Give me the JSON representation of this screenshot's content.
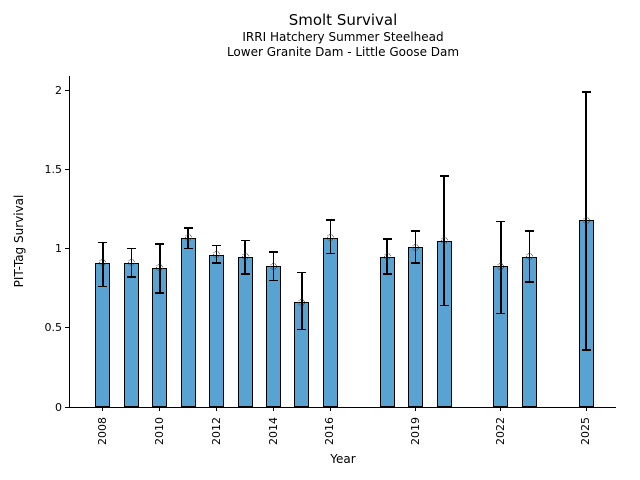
{
  "chart_data": {
    "type": "bar",
    "title": "Smolt Survival",
    "subtitles": [
      "IRRI Hatchery Summer Steelhead",
      "Lower Granite Dam - Little Goose Dam"
    ],
    "xlabel": "Year",
    "ylabel": "PIT-Tag Survival",
    "xlim": [
      2006.84,
      2026.05
    ],
    "ylim": [
      0,
      2.09
    ],
    "xticks": [
      2008,
      2010,
      2012,
      2014,
      2016,
      2019,
      2022,
      2025
    ],
    "yticks": [
      0,
      0.5,
      1,
      1.5,
      2
    ],
    "ytick_labels": [
      "0",
      "0.5",
      "1",
      "1.5",
      "2"
    ],
    "grid": false,
    "legend_position": "none",
    "bar_color": "#58a3d2",
    "bar_edge_color": "#000000",
    "error_color": "#000000",
    "points": [
      {
        "year": 2008,
        "value": 0.91,
        "err_low": 0.76,
        "err_high": 1.04
      },
      {
        "year": 2009,
        "value": 0.91,
        "err_low": 0.82,
        "err_high": 1.0
      },
      {
        "year": 2010,
        "value": 0.88,
        "err_low": 0.72,
        "err_high": 1.03
      },
      {
        "year": 2011,
        "value": 1.07,
        "err_low": 1.0,
        "err_high": 1.13
      },
      {
        "year": 2012,
        "value": 0.96,
        "err_low": 0.91,
        "err_high": 1.02
      },
      {
        "year": 2013,
        "value": 0.95,
        "err_low": 0.84,
        "err_high": 1.05
      },
      {
        "year": 2014,
        "value": 0.89,
        "err_low": 0.8,
        "err_high": 0.98
      },
      {
        "year": 2015,
        "value": 0.66,
        "err_low": 0.49,
        "err_high": 0.85
      },
      {
        "year": 2016,
        "value": 1.07,
        "err_low": 0.97,
        "err_high": 1.18
      },
      {
        "year": 2018,
        "value": 0.95,
        "err_low": 0.84,
        "err_high": 1.06
      },
      {
        "year": 2019,
        "value": 1.01,
        "err_low": 0.91,
        "err_high": 1.11
      },
      {
        "year": 2020,
        "value": 1.05,
        "err_low": 0.64,
        "err_high": 1.46
      },
      {
        "year": 2022,
        "value": 0.89,
        "err_low": 0.59,
        "err_high": 1.17
      },
      {
        "year": 2023,
        "value": 0.95,
        "err_low": 0.79,
        "err_high": 1.11
      },
      {
        "year": 2025,
        "value": 1.18,
        "err_low": 0.36,
        "err_high": 1.99
      }
    ]
  }
}
